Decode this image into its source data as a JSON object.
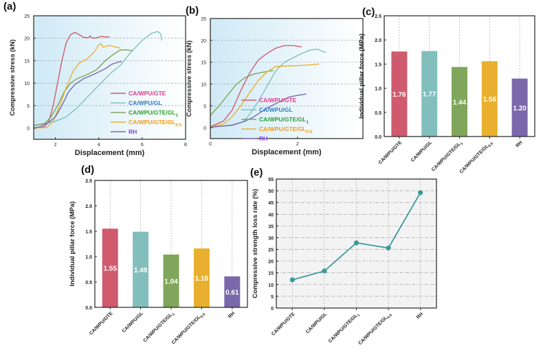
{
  "colors": {
    "GTE": "#d05a6e",
    "GL": "#82bfbc",
    "GL1": "#7fa65a",
    "GL05": "#e8b02e",
    "RH": "#7a69aa",
    "line_e": "#3a9a9c"
  },
  "legend_colors": {
    "GTE": "#e8368c",
    "GL": "#2c7cc0",
    "GL1": "#2e9e2e",
    "GL05": "#f39a12",
    "RH": "#8a3ee8"
  },
  "chart_data": [
    {
      "panel": "(a)",
      "type": "line",
      "xlabel": "Displacement (mm)",
      "ylabel": "Compressive stress (kN)",
      "xlim": [
        1,
        8
      ],
      "ylim": [
        -2.5,
        25
      ],
      "xticks": [
        2,
        4,
        6,
        8
      ],
      "yticks": [
        0,
        5,
        10,
        15,
        20,
        25
      ],
      "grid": "horizontal dashed",
      "legend": "bottom-right",
      "series": [
        {
          "key": "GTE",
          "name": "CA/WPU/GTE",
          "sub": "",
          "points": [
            [
              1.1,
              0
            ],
            [
              1.5,
              0.3
            ],
            [
              1.7,
              1.5
            ],
            [
              1.9,
              5
            ],
            [
              2.1,
              10
            ],
            [
              2.3,
              15
            ],
            [
              2.5,
              19
            ],
            [
              2.7,
              20.8
            ],
            [
              2.9,
              21.3
            ],
            [
              3.1,
              20.8
            ],
            [
              3.3,
              20.2
            ],
            [
              3.5,
              20.1
            ],
            [
              3.6,
              20.5
            ],
            [
              3.7,
              20
            ],
            [
              3.9,
              20.1
            ],
            [
              4.1,
              20.4
            ],
            [
              4.3,
              20.3
            ],
            [
              4.5,
              20.3
            ]
          ]
        },
        {
          "key": "GL",
          "name": "CA/WPU/GL",
          "sub": "",
          "points": [
            [
              1,
              0.5
            ],
            [
              1.5,
              1
            ],
            [
              2,
              1.5
            ],
            [
              2.5,
              2.5
            ],
            [
              3,
              4.5
            ],
            [
              3.5,
              7
            ],
            [
              4,
              9.5
            ],
            [
              4.5,
              12
            ],
            [
              5,
              14
            ],
            [
              5.5,
              17
            ],
            [
              6,
              19.5
            ],
            [
              6.4,
              21
            ],
            [
              6.7,
              21.5
            ],
            [
              6.85,
              21
            ],
            [
              6.9,
              19.5
            ]
          ]
        },
        {
          "key": "GL1",
          "name": "CA/WPU/GTE/GL",
          "sub": "1",
          "points": [
            [
              1,
              0.6
            ],
            [
              1.5,
              1
            ],
            [
              1.8,
              2.5
            ],
            [
              2.1,
              5
            ],
            [
              2.4,
              8
            ],
            [
              2.7,
              10
            ],
            [
              3,
              11
            ],
            [
              3.5,
              12
            ],
            [
              3.9,
              13
            ],
            [
              4.3,
              15
            ],
            [
              4.7,
              16.5
            ],
            [
              5,
              17.4
            ],
            [
              5.3,
              17.4
            ],
            [
              5.55,
              17.2
            ]
          ]
        },
        {
          "key": "GL05",
          "name": "CA/WPU/GTE/GL",
          "sub": "0.5",
          "points": [
            [
              1,
              0
            ],
            [
              1.6,
              0.1
            ],
            [
              1.9,
              1.5
            ],
            [
              2.2,
              5
            ],
            [
              2.5,
              9
            ],
            [
              2.8,
              12.5
            ],
            [
              3.1,
              14.5
            ],
            [
              3.5,
              15.5
            ],
            [
              3.8,
              17
            ],
            [
              4,
              18.5
            ],
            [
              4.1,
              18.8
            ],
            [
              4.2,
              18
            ],
            [
              4.5,
              18.4
            ],
            [
              4.8,
              18
            ],
            [
              5,
              17.8
            ]
          ]
        },
        {
          "key": "RH",
          "name": "RH",
          "sub": "",
          "points": [
            [
              1,
              0
            ],
            [
              1.3,
              0.3
            ],
            [
              1.7,
              1.3
            ],
            [
              2,
              2.5
            ],
            [
              2.3,
              5
            ],
            [
              2.6,
              8
            ],
            [
              2.9,
              9.7
            ],
            [
              3.3,
              11
            ],
            [
              3.7,
              11.8
            ],
            [
              4,
              12.5
            ],
            [
              4.3,
              13.2
            ],
            [
              4.6,
              14.2
            ],
            [
              4.9,
              14.7
            ],
            [
              5.05,
              14.8
            ]
          ]
        }
      ]
    },
    {
      "panel": "(b)",
      "type": "line",
      "xlabel": "Displacement (mm)",
      "ylabel": "Compressive stress (kN)",
      "xlim": [
        0,
        3.5
      ],
      "ylim": [
        -2.5,
        25
      ],
      "xticks": [
        0,
        2
      ],
      "yticks": [
        0,
        5,
        10,
        15,
        20,
        25
      ],
      "grid": "horizontal dashed",
      "legend": "bottom-right",
      "series": [
        {
          "key": "GTE",
          "name": "CA/WPU/GTE",
          "sub": "",
          "points": [
            [
              0,
              0.2
            ],
            [
              0.3,
              1.5
            ],
            [
              0.5,
              4
            ],
            [
              0.7,
              8.5
            ],
            [
              0.9,
              12.5
            ],
            [
              1.1,
              15.5
            ],
            [
              1.3,
              17
            ],
            [
              1.5,
              18.2
            ],
            [
              1.7,
              18.8
            ],
            [
              1.9,
              18.8
            ],
            [
              2.1,
              18.5
            ]
          ]
        },
        {
          "key": "GL",
          "name": "CA/WPU/GL",
          "sub": "",
          "points": [
            [
              0,
              0.1
            ],
            [
              0.5,
              0.5
            ],
            [
              0.75,
              1.3
            ],
            [
              0.9,
              3
            ],
            [
              1.1,
              6
            ],
            [
              1.3,
              9.5
            ],
            [
              1.5,
              13
            ],
            [
              1.7,
              15
            ],
            [
              1.9,
              16
            ],
            [
              2.1,
              17
            ],
            [
              2.3,
              17.8
            ],
            [
              2.45,
              18
            ],
            [
              2.55,
              17.6
            ],
            [
              2.65,
              17.2
            ]
          ]
        },
        {
          "key": "GL1",
          "name": "CA/WPU/GTE/GL",
          "sub": "1",
          "points": [
            [
              0,
              2.8
            ],
            [
              0.2,
              5
            ],
            [
              0.4,
              7.5
            ],
            [
              0.6,
              10
            ],
            [
              0.8,
              11.5
            ],
            [
              1,
              12.3
            ],
            [
              1.2,
              12.7
            ],
            [
              1.45,
              13.1
            ]
          ]
        },
        {
          "key": "GL05",
          "name": "CA/WPU/GTE/GL",
          "sub": "0.5",
          "points": [
            [
              0,
              0.2
            ],
            [
              0.3,
              0.8
            ],
            [
              0.5,
              2.5
            ],
            [
              0.7,
              5
            ],
            [
              0.9,
              8
            ],
            [
              1.1,
              10.8
            ],
            [
              1.3,
              12.8
            ],
            [
              1.5,
              14
            ],
            [
              1.7,
              14.1
            ],
            [
              2,
              14.2
            ],
            [
              2.3,
              14.4
            ],
            [
              2.5,
              14.6
            ]
          ]
        },
        {
          "key": "RH",
          "name": "RH",
          "sub": "",
          "points": [
            [
              0,
              0.1
            ],
            [
              0.5,
              0.6
            ],
            [
              0.8,
              1.5
            ],
            [
              1,
              2.5
            ],
            [
              1.3,
              4.5
            ],
            [
              1.6,
              6
            ],
            [
              1.8,
              7
            ],
            [
              2,
              7.4
            ],
            [
              2.2,
              7.7
            ]
          ]
        }
      ]
    },
    {
      "panel": "(c)",
      "type": "bar",
      "ylabel": "Individual pillar force (MPa)",
      "ylim": [
        0,
        2.5
      ],
      "yticks": [
        "0.0",
        "0.5",
        "1.0",
        "1.5",
        "2.0",
        "2.5"
      ],
      "categories": [
        [
          "CA/WPU/GTE",
          ""
        ],
        [
          "CA/WPU/GL",
          ""
        ],
        [
          "CA/WPU/GTE/GL",
          "1"
        ],
        [
          "CA/WPU/GTE/GL",
          "0.5"
        ],
        [
          "RH",
          ""
        ]
      ],
      "keys": [
        "GTE",
        "GL",
        "GL1",
        "GL05",
        "RH"
      ],
      "values": [
        1.76,
        1.77,
        1.44,
        1.56,
        1.2
      ],
      "labels": [
        "1.76",
        "1.77",
        "1.44",
        "1.56",
        "1.20"
      ]
    },
    {
      "panel": "(d)",
      "type": "bar",
      "ylabel": "Individual pillar force (MPa)",
      "ylim": [
        0,
        2.5
      ],
      "yticks": [
        "0.0",
        "0.5",
        "1.0",
        "1.5",
        "2.0",
        "2.5"
      ],
      "categories": [
        [
          "CA/WPU/GTE",
          ""
        ],
        [
          "CA/WPU/GL",
          ""
        ],
        [
          "CA/WPU/GTE/GL",
          "1"
        ],
        [
          "CA/WPU/GTE/GL",
          "0.5"
        ],
        [
          "RH",
          ""
        ]
      ],
      "keys": [
        "GTE",
        "GL",
        "GL1",
        "GL05",
        "RH"
      ],
      "values": [
        1.55,
        1.49,
        1.04,
        1.16,
        0.61
      ],
      "labels": [
        "1.55",
        "1.49",
        "1.04",
        "1.16",
        "0.61"
      ]
    },
    {
      "panel": "(e)",
      "type": "line",
      "ylabel": "Compressive strength loss rate  (%)",
      "ylim": [
        0,
        55
      ],
      "yticks": [
        0,
        5,
        10,
        15,
        20,
        25,
        30,
        35,
        40,
        45,
        50,
        55
      ],
      "grid": "both dash-dot",
      "categories": [
        [
          "CA/WPU/GTE",
          ""
        ],
        [
          "CA/WPU/GL",
          ""
        ],
        [
          "CA/WPU/GTE/GL",
          "1"
        ],
        [
          "CA/WPU/GTE/GL",
          "0.5"
        ],
        [
          "RH",
          ""
        ]
      ],
      "values": [
        12,
        15.8,
        27.8,
        25.6,
        49.2
      ]
    }
  ]
}
